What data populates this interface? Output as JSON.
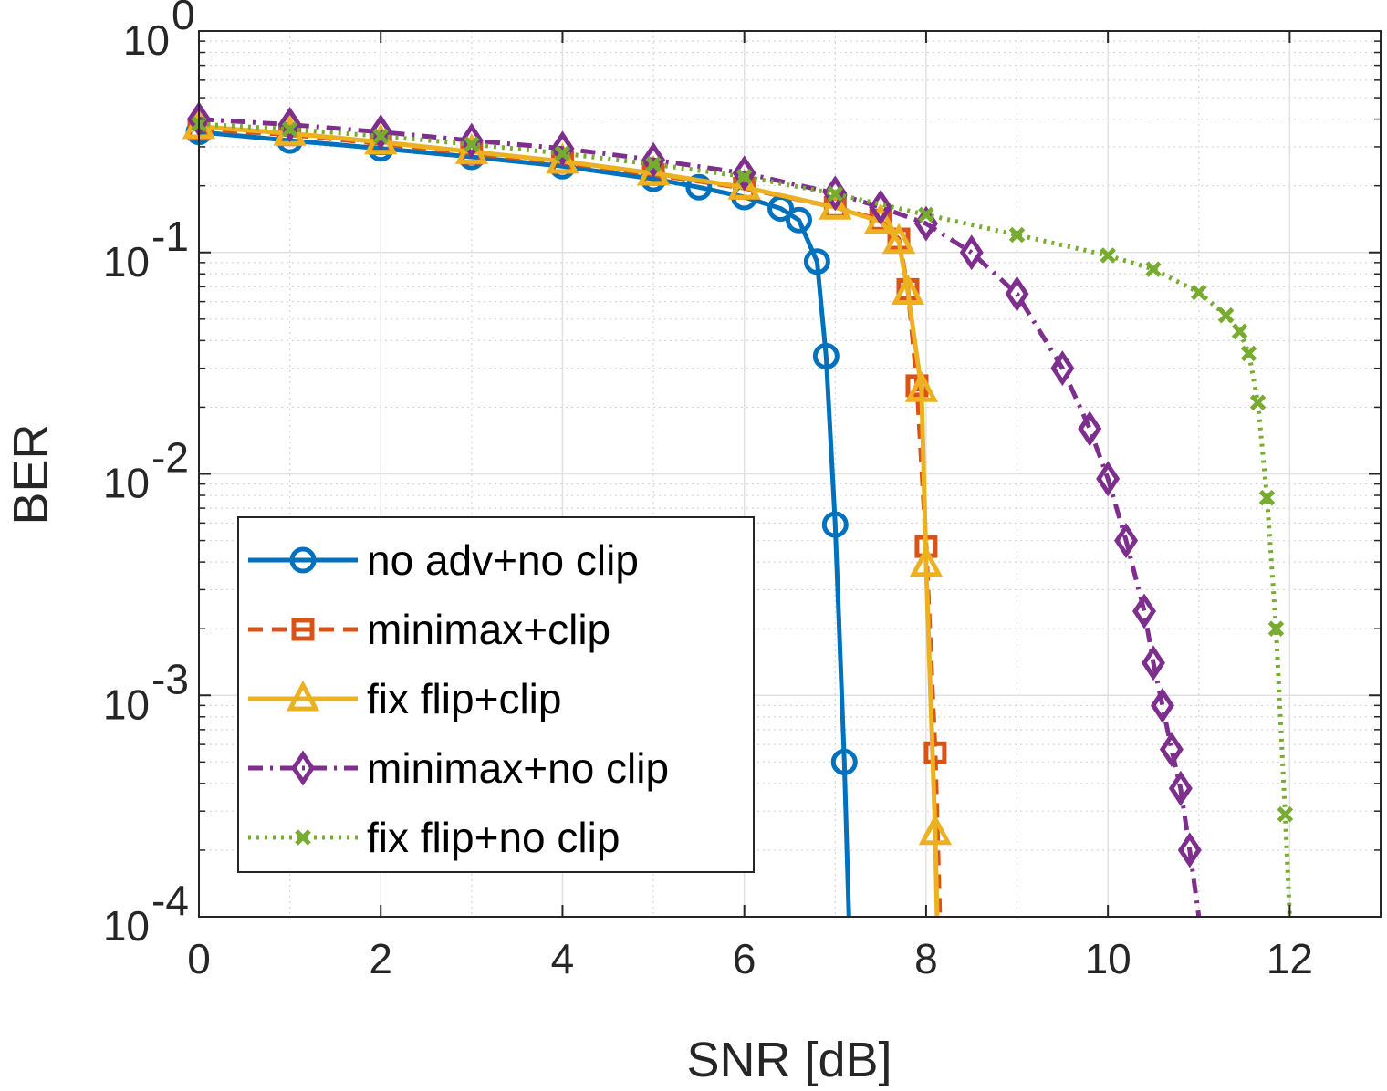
{
  "chart_data": {
    "type": "line",
    "xlabel": "SNR [dB]",
    "ylabel": "BER",
    "xlim": [
      0,
      13
    ],
    "ylim": [
      0.0001,
      1
    ],
    "yscale": "log",
    "grid": true,
    "minor_grid": true,
    "legend_position": "bottom-left",
    "x_ticks": [
      "0",
      "2",
      "4",
      "6",
      "8",
      "10",
      "12"
    ],
    "y_ticks": [
      {
        "base": "10",
        "exp": "0"
      },
      {
        "base": "10",
        "exp": "-1"
      },
      {
        "base": "10",
        "exp": "-2"
      },
      {
        "base": "10",
        "exp": "-3"
      },
      {
        "base": "10",
        "exp": "-4"
      }
    ],
    "series": [
      {
        "name": "no adv+no clip",
        "color": "#0072BD",
        "line_style": "solid",
        "marker": "circle",
        "points": [
          [
            0,
            0.35
          ],
          [
            1,
            0.32
          ],
          [
            2,
            0.295
          ],
          [
            3,
            0.27
          ],
          [
            4,
            0.245
          ],
          [
            5,
            0.215
          ],
          [
            5.5,
            0.197
          ],
          [
            6,
            0.178
          ],
          [
            6.4,
            0.158
          ],
          [
            6.6,
            0.14
          ],
          [
            6.8,
            0.091
          ],
          [
            6.9,
            0.034
          ],
          [
            7.0,
            0.0059
          ],
          [
            7.1,
            0.0005
          ],
          [
            7.15,
            0.0001
          ]
        ]
      },
      {
        "name": "minimax+clip",
        "color": "#D95319",
        "line_style": "dashed",
        "marker": "square",
        "points": [
          [
            0,
            0.36
          ],
          [
            1,
            0.34
          ],
          [
            2,
            0.31
          ],
          [
            3,
            0.28
          ],
          [
            4,
            0.255
          ],
          [
            5,
            0.225
          ],
          [
            6,
            0.195
          ],
          [
            7,
            0.16
          ],
          [
            7.5,
            0.14
          ],
          [
            7.7,
            0.115
          ],
          [
            7.8,
            0.068
          ],
          [
            7.9,
            0.025
          ],
          [
            8.0,
            0.0047
          ],
          [
            8.1,
            0.00055
          ],
          [
            8.15,
            0.0001
          ]
        ]
      },
      {
        "name": "fix flip+clip",
        "color": "#EDB120",
        "line_style": "solid",
        "marker": "triangle",
        "points": [
          [
            0,
            0.37
          ],
          [
            1,
            0.345
          ],
          [
            2,
            0.315
          ],
          [
            3,
            0.285
          ],
          [
            4,
            0.258
          ],
          [
            5,
            0.228
          ],
          [
            6,
            0.197
          ],
          [
            7,
            0.16
          ],
          [
            7.5,
            0.138
          ],
          [
            7.7,
            0.112
          ],
          [
            7.8,
            0.066
          ],
          [
            7.95,
            0.024
          ],
          [
            8.0,
            0.0039
          ],
          [
            8.1,
            0.00024
          ],
          [
            8.12,
            0.0001
          ]
        ]
      },
      {
        "name": "minimax+no clip",
        "color": "#7E2F8E",
        "line_style": "dashdot",
        "marker": "diamond",
        "points": [
          [
            0,
            0.4
          ],
          [
            1,
            0.378
          ],
          [
            2,
            0.35
          ],
          [
            3,
            0.32
          ],
          [
            4,
            0.295
          ],
          [
            5,
            0.262
          ],
          [
            6,
            0.228
          ],
          [
            7,
            0.185
          ],
          [
            7.5,
            0.16
          ],
          [
            8,
            0.135
          ],
          [
            8.5,
            0.1
          ],
          [
            9,
            0.065
          ],
          [
            9.5,
            0.03
          ],
          [
            9.8,
            0.016
          ],
          [
            10,
            0.0095
          ],
          [
            10.2,
            0.005
          ],
          [
            10.4,
            0.0024
          ],
          [
            10.5,
            0.0014
          ],
          [
            10.6,
            0.0009
          ],
          [
            10.7,
            0.00057
          ],
          [
            10.8,
            0.00038
          ],
          [
            10.9,
            0.0002
          ],
          [
            11.0,
            0.0001
          ]
        ]
      },
      {
        "name": "fix flip+no clip",
        "color": "#77AC30",
        "line_style": "dotted",
        "marker": "x",
        "points": [
          [
            0,
            0.38
          ],
          [
            1,
            0.36
          ],
          [
            2,
            0.335
          ],
          [
            3,
            0.308
          ],
          [
            4,
            0.28
          ],
          [
            5,
            0.25
          ],
          [
            6,
            0.22
          ],
          [
            7,
            0.184
          ],
          [
            8,
            0.148
          ],
          [
            9,
            0.12
          ],
          [
            10,
            0.097
          ],
          [
            10.5,
            0.084
          ],
          [
            11,
            0.066
          ],
          [
            11.3,
            0.052
          ],
          [
            11.45,
            0.044
          ],
          [
            11.55,
            0.035
          ],
          [
            11.65,
            0.021
          ],
          [
            11.75,
            0.0078
          ],
          [
            11.85,
            0.002
          ],
          [
            11.95,
            0.00029
          ],
          [
            12.0,
            0.0001
          ]
        ]
      }
    ]
  }
}
